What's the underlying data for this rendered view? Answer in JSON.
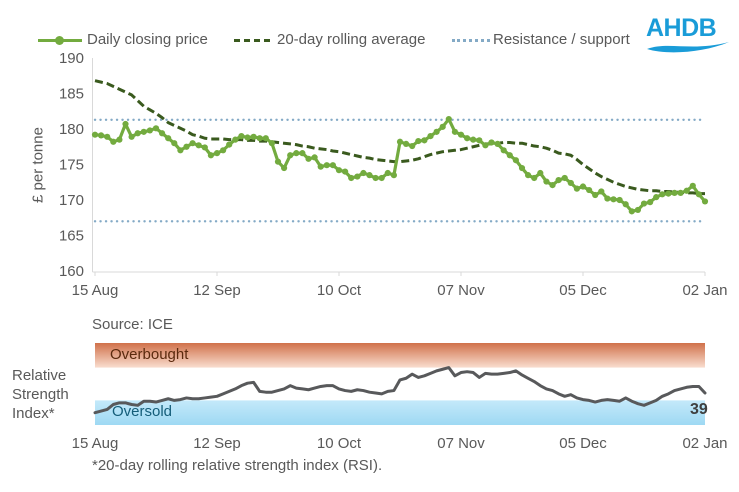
{
  "legend": {
    "items": [
      {
        "label": "Daily closing price",
        "swatch": "line-with-marker",
        "color": "#73ab3f"
      },
      {
        "label": "20-day rolling average",
        "swatch": "dashed-line",
        "color": "#3a5a1e"
      },
      {
        "label": "Resistance / support",
        "swatch": "dotted-line",
        "color": "#84aac6"
      }
    ]
  },
  "logo": {
    "text": "AHDB",
    "color": "#1a9cd8"
  },
  "price_chart": {
    "ylabel": "£ per tonne",
    "source": "Source: ICE"
  },
  "rsi_panel": {
    "axis_label": "Relative Strength Index*",
    "overbought_label": "Overbought",
    "oversold_label": "Oversold",
    "current_value": "39",
    "footnote": "*20-day rolling relative strength index (RSI)."
  },
  "colors": {
    "daily_line": "#73ab3f",
    "rolling_avg": "#3a5a1e",
    "support_resistance": "#84aac6",
    "rsi_line": "#58595b",
    "axis_text": "#595959",
    "spine": "#d9d9d9",
    "overbought_top": "#d0714a",
    "overbought_bottom": "#f9ddcf",
    "overbought_text": "#5b2a0e",
    "oversold_top": "#c4e9fa",
    "oversold_bottom": "#9ed9f3",
    "oversold_text": "#145d79",
    "logo_blue": "#1a9cd8",
    "rsi_value_text": "#3f3f3f"
  },
  "chart_data": [
    {
      "type": "line",
      "ylabel": "£ per tonne",
      "ylim": [
        160,
        190
      ],
      "yticks": [
        160,
        165,
        170,
        175,
        180,
        185,
        190
      ],
      "x_tick_labels": [
        "15 Aug",
        "12 Sep",
        "10 Oct",
        "07 Nov",
        "05 Dec",
        "02 Jan"
      ],
      "x_tick_positions": [
        0,
        20,
        40,
        60,
        80,
        100
      ],
      "grid": false,
      "legend_position": "top",
      "source": "Source: ICE",
      "reference_lines": [
        {
          "name": "Resistance",
          "value": 181.3
        },
        {
          "name": "Support",
          "value": 167.0
        }
      ],
      "series": [
        {
          "name": "Daily closing price",
          "style": "solid-with-markers",
          "values": [
            179.2,
            179.1,
            178.9,
            178.2,
            178.5,
            180.7,
            178.9,
            179.4,
            179.6,
            179.8,
            180.1,
            179.4,
            178.7,
            178.0,
            177.0,
            177.5,
            178.0,
            177.7,
            177.4,
            176.3,
            176.6,
            177.0,
            177.8,
            178.5,
            179.0,
            178.8,
            178.9,
            178.7,
            178.7,
            178.0,
            175.4,
            174.5,
            176.3,
            176.6,
            176.6,
            175.8,
            176.0,
            174.7,
            174.9,
            174.9,
            174.2,
            174.0,
            173.1,
            173.3,
            173.8,
            173.5,
            173.1,
            173.1,
            173.8,
            173.5,
            178.2,
            177.9,
            177.6,
            178.3,
            178.4,
            179.0,
            179.6,
            180.3,
            181.4,
            179.6,
            179.2,
            178.7,
            178.5,
            178.4,
            177.7,
            178.1,
            177.9,
            177.0,
            176.3,
            175.6,
            174.5,
            173.5,
            173.1,
            173.8,
            172.6,
            172.1,
            172.8,
            173.1,
            172.4,
            171.6,
            171.9,
            171.4,
            170.7,
            171.2,
            170.2,
            170.1,
            170.0,
            169.4,
            168.4,
            168.6,
            169.5,
            169.7,
            170.4,
            170.8,
            170.9,
            171.0,
            171.0,
            171.3,
            172.0,
            170.8,
            169.8
          ]
        },
        {
          "name": "20-day rolling average",
          "style": "dashed",
          "values": [
            186.8,
            186.6,
            186.4,
            186.0,
            185.6,
            185.2,
            184.8,
            184.0,
            183.2,
            182.7,
            182.2,
            181.6,
            180.9,
            180.5,
            180.1,
            179.7,
            179.2,
            179.0,
            178.7,
            178.6,
            178.6,
            178.6,
            178.5,
            178.5,
            178.5,
            178.4,
            178.4,
            178.3,
            178.3,
            178.2,
            178.1,
            178.0,
            177.9,
            177.8,
            177.6,
            177.5,
            177.3,
            177.2,
            177.1,
            176.9,
            176.8,
            176.6,
            176.4,
            176.2,
            176.0,
            175.9,
            175.7,
            175.6,
            175.5,
            175.4,
            175.4,
            175.5,
            175.6,
            175.8,
            176.1,
            176.4,
            176.6,
            176.8,
            176.9,
            177.0,
            177.1,
            177.3,
            177.5,
            177.7,
            177.9,
            177.9,
            178.0,
            178.1,
            178.1,
            178.0,
            178.0,
            177.8,
            177.6,
            177.5,
            177.3,
            177.0,
            176.6,
            176.5,
            176.3,
            175.7,
            175.0,
            174.4,
            173.8,
            173.3,
            172.9,
            172.5,
            172.2,
            171.9,
            171.7,
            171.5,
            171.4,
            171.3,
            171.3,
            171.2,
            171.2,
            171.1,
            171.1,
            171.0,
            171.0,
            170.9,
            170.9
          ]
        }
      ]
    },
    {
      "type": "line",
      "name": "20-day rolling relative strength index (RSI)",
      "ylim": [
        0,
        100
      ],
      "bands": [
        {
          "label": "Overbought",
          "range": [
            70,
            100
          ]
        },
        {
          "label": "Oversold",
          "range": [
            0,
            30
          ]
        }
      ],
      "x_tick_labels": [
        "15 Aug",
        "12 Sep",
        "10 Oct",
        "07 Nov",
        "05 Dec",
        "02 Jan"
      ],
      "x_tick_positions": [
        0,
        20,
        40,
        60,
        80,
        100
      ],
      "last_value_label": "39",
      "values": [
        15,
        17,
        19,
        25,
        27,
        27,
        25,
        24,
        29,
        29,
        28,
        30,
        32,
        30,
        31,
        33,
        32,
        32,
        33,
        34,
        35,
        38,
        41,
        44,
        48,
        51,
        52,
        41,
        40,
        40,
        42,
        44,
        48,
        45,
        44,
        43,
        45,
        47,
        48,
        48,
        44,
        42,
        41,
        43,
        42,
        40,
        39,
        38,
        41,
        42,
        55,
        57,
        62,
        58,
        60,
        63,
        66,
        68,
        70,
        60,
        64,
        65,
        64,
        58,
        63,
        62,
        62,
        63,
        64,
        66,
        61,
        57,
        53,
        48,
        44,
        42,
        38,
        35,
        37,
        33,
        31,
        30,
        28,
        30,
        31,
        30,
        29,
        33,
        29,
        26,
        24,
        27,
        30,
        35,
        38,
        42,
        44,
        46,
        47,
        47,
        39
      ]
    }
  ]
}
